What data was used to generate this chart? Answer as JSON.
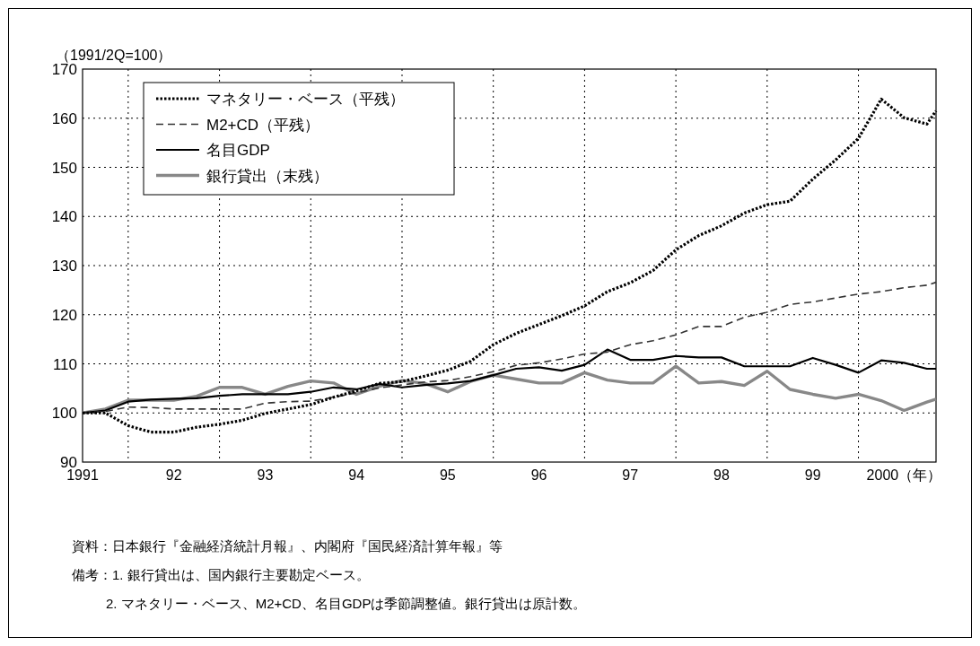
{
  "chart_data": {
    "type": "line",
    "ylabel": "（1991/2Q=100）",
    "x": [
      1991,
      1991.25,
      1991.5,
      1991.75,
      1992,
      1992.25,
      1992.5,
      1992.75,
      1993,
      1993.25,
      1993.5,
      1993.75,
      1994,
      1994.25,
      1994.5,
      1994.75,
      1995,
      1995.25,
      1995.5,
      1995.75,
      1996,
      1996.25,
      1996.5,
      1996.75,
      1997,
      1997.25,
      1997.5,
      1997.75,
      1998,
      1998.25,
      1998.5,
      1998.75,
      1999,
      1999.25,
      1999.5,
      1999.75,
      2000,
      2000.25,
      2000.35
    ],
    "series": [
      {
        "name": "マネタリー・ベース（平残）",
        "color": "#000000",
        "line_style": "dotted",
        "values": [
          100,
          100,
          97.4,
          96.1,
          96.1,
          97.1,
          97.7,
          98.5,
          99.9,
          100.8,
          101.7,
          103.2,
          104.5,
          106.0,
          106.4,
          107.5,
          108.7,
          110.5,
          113.9,
          116.2,
          118.0,
          119.8,
          121.8,
          124.7,
          126.5,
          129.0,
          133.2,
          136.1,
          138.1,
          140.7,
          142.4,
          143.1,
          147.6,
          151.5,
          155.9,
          163.9,
          160.1,
          158.8,
          161.5
        ]
      },
      {
        "name": "M2+CD（平残）",
        "color": "#333333",
        "line_style": "dashed",
        "values": [
          100,
          100.3,
          101.2,
          101.1,
          100.8,
          100.8,
          100.8,
          100.8,
          102.0,
          102.3,
          102.4,
          103.2,
          104.1,
          105.1,
          105.7,
          106.3,
          106.6,
          107.4,
          108.4,
          109.7,
          110.2,
          111.0,
          112.0,
          112.4,
          113.9,
          114.7,
          115.9,
          117.6,
          117.6,
          119.5,
          120.5,
          122.1,
          122.6,
          123.4,
          124.2,
          124.7,
          125.5,
          126.0,
          126.6
        ]
      },
      {
        "name": "名目GDP",
        "color": "#000000",
        "line_style": "solid",
        "values": [
          100,
          100.5,
          102.3,
          102.7,
          102.9,
          103.0,
          103.5,
          103.8,
          103.8,
          103.8,
          104.3,
          105.2,
          104.8,
          105.9,
          105.2,
          105.7,
          106.0,
          106.5,
          107.7,
          109.0,
          109.3,
          108.6,
          109.8,
          112.9,
          110.8,
          110.8,
          111.6,
          111.3,
          111.3,
          109.5,
          109.5,
          109.5,
          111.2,
          109.8,
          108.2,
          110.7,
          110.2,
          109.0,
          109.0
        ]
      },
      {
        "name": "銀行貸出（末残）",
        "color": "#888888",
        "line_style": "solid",
        "values": [
          100,
          100.8,
          102.6,
          102.6,
          102.6,
          103.4,
          105.2,
          105.2,
          103.8,
          105.4,
          106.5,
          106.1,
          103.8,
          105.4,
          106.6,
          106.0,
          104.3,
          106.4,
          107.7,
          106.9,
          106.1,
          106.1,
          108.2,
          106.7,
          106.1,
          106.1,
          109.5,
          106.1,
          106.4,
          105.6,
          108.5,
          104.8,
          103.8,
          103.0,
          103.8,
          102.5,
          100.5,
          102.2,
          102.8
        ]
      }
    ],
    "xlim": [
      1991,
      2000.35
    ],
    "xticks": [
      {
        "value": 1991,
        "label": "1991"
      },
      {
        "value": 1991.5,
        "label": null
      },
      {
        "value": 1992,
        "label": "92"
      },
      {
        "value": 1992.5,
        "label": null
      },
      {
        "value": 1993,
        "label": "93"
      },
      {
        "value": 1993.5,
        "label": null
      },
      {
        "value": 1994,
        "label": "94"
      },
      {
        "value": 1994.5,
        "label": null
      },
      {
        "value": 1995,
        "label": "95"
      },
      {
        "value": 1995.5,
        "label": null
      },
      {
        "value": 1996,
        "label": "96"
      },
      {
        "value": 1996.5,
        "label": null
      },
      {
        "value": 1997,
        "label": "97"
      },
      {
        "value": 1997.5,
        "label": null
      },
      {
        "value": 1998,
        "label": "98"
      },
      {
        "value": 1998.5,
        "label": null
      },
      {
        "value": 1999,
        "label": "99"
      },
      {
        "value": 1999.5,
        "label": null
      },
      {
        "value": 2000,
        "label": "2000（年）"
      }
    ],
    "ylim": [
      90,
      170
    ],
    "yticks": [
      90,
      100,
      110,
      120,
      130,
      140,
      150,
      160,
      170
    ],
    "grid": true,
    "legend": "top left",
    "annotations": [
      "資料：日本銀行『金融経済統計月報』、内閣府『国民経済計算年報』等",
      "備考：1. 銀行貸出は、国内銀行主要勘定ベース。",
      "2. マネタリー・ベース、M2+CD、名目GDPは季節調整値。銀行貸出は原計数。"
    ]
  }
}
